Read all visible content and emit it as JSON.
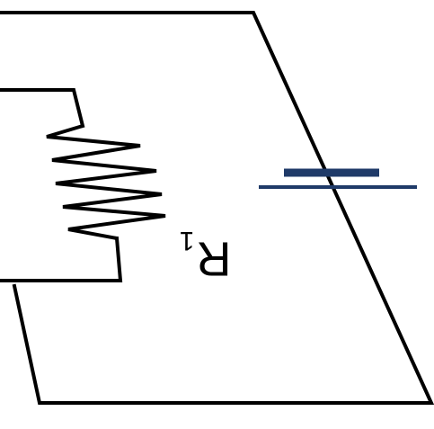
{
  "diagram": {
    "type": "circuit",
    "orientation": "rotated-180",
    "components": [
      {
        "kind": "resistor",
        "label_main": "R",
        "label_sub": "1"
      },
      {
        "kind": "battery"
      }
    ],
    "colors": {
      "wire": "#000000",
      "battery_long_plate": "#1f3a68",
      "battery_short_plate": "#1f3a68",
      "background": "#ffffff"
    }
  }
}
